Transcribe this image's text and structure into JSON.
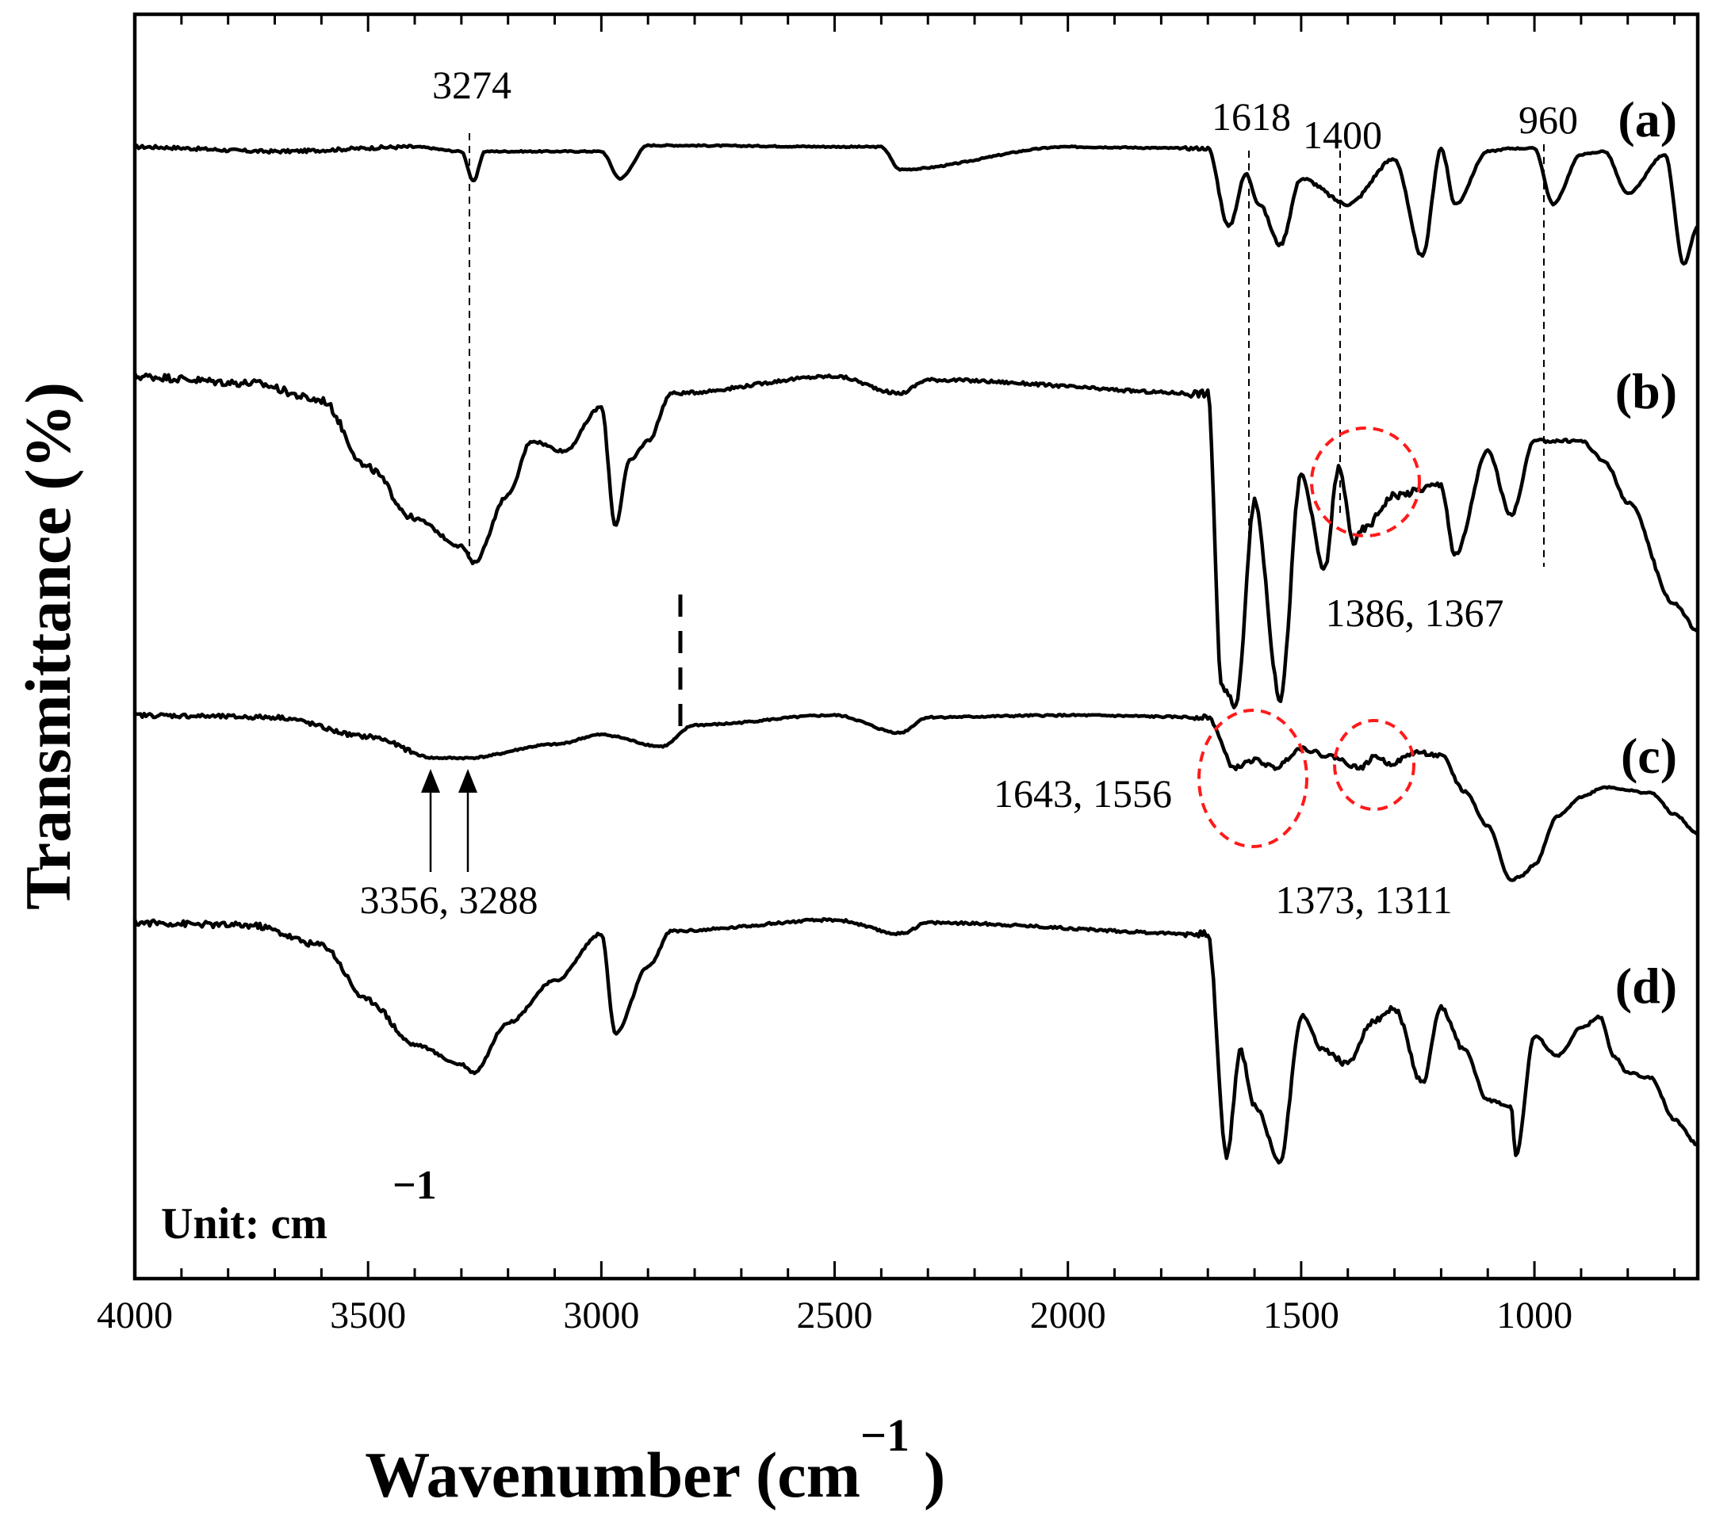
{
  "chart_data": {
    "type": "line",
    "title": "",
    "xlabel": "Wavenumber (cm",
    "xlabel_sup": "−1",
    "xlabel_close": ")",
    "ylabel": "Transmittance (%)",
    "xlim": [
      4000,
      650
    ],
    "reversed_x": true,
    "y_ticks_shown": false,
    "x_ticks": [
      4000,
      3500,
      3000,
      2500,
      2000,
      1500,
      1000
    ],
    "x_tick_labels": [
      "4000",
      "3500",
      "3000",
      "2500",
      "2000",
      "1500",
      "1000"
    ],
    "unit_note": "Unit: cm",
    "unit_note_sup": "−1",
    "series": [
      {
        "name": "(a)",
        "description_keypoints_wavenumber_cm-1": [
          4000,
          3700,
          3400,
          3300,
          3274,
          3250,
          3000,
          2960,
          2900,
          2400,
          2360,
          2000,
          1700,
          1655,
          1618,
          1590,
          1545,
          1500,
          1400,
          1300,
          1240,
          1200,
          1170,
          1100,
          1050,
          1000,
          960,
          900,
          850,
          800,
          720,
          680,
          650
        ],
        "relative_transmittance": [
          0.93,
          0.9,
          0.93,
          0.9,
          0.7,
          0.9,
          0.9,
          0.72,
          0.94,
          0.93,
          0.78,
          0.93,
          0.92,
          0.4,
          0.75,
          0.55,
          0.28,
          0.72,
          0.55,
          0.85,
          0.2,
          0.92,
          0.55,
          0.9,
          0.92,
          0.92,
          0.55,
          0.88,
          0.9,
          0.62,
          0.88,
          0.15,
          0.4
        ]
      },
      {
        "name": "(b)",
        "description_keypoints_wavenumber_cm-1": [
          4000,
          3750,
          3600,
          3500,
          3400,
          3300,
          3274,
          3200,
          3150,
          3080,
          3000,
          2970,
          2940,
          2900,
          2850,
          2500,
          2360,
          2300,
          1700,
          1670,
          1640,
          1600,
          1545,
          1500,
          1450,
          1420,
          1386,
          1367,
          1300,
          1200,
          1170,
          1100,
          1050,
          1000,
          900,
          850,
          800,
          700,
          650
        ],
        "relative_transmittance": [
          0.97,
          0.95,
          0.9,
          0.7,
          0.55,
          0.47,
          0.42,
          0.62,
          0.78,
          0.75,
          0.88,
          0.53,
          0.72,
          0.78,
          0.92,
          0.97,
          0.92,
          0.96,
          0.92,
          0.05,
          0.0,
          0.6,
          0.02,
          0.68,
          0.4,
          0.7,
          0.48,
          0.52,
          0.62,
          0.65,
          0.44,
          0.75,
          0.56,
          0.78,
          0.78,
          0.72,
          0.6,
          0.3,
          0.22
        ]
      },
      {
        "name": "(c)",
        "description_keypoints_wavenumber_cm-1": [
          4000,
          3700,
          3500,
          3356,
          3288,
          3100,
          3000,
          2870,
          2800,
          2500,
          2360,
          2300,
          2000,
          1700,
          1643,
          1600,
          1556,
          1500,
          1440,
          1373,
          1340,
          1311,
          1250,
          1200,
          1150,
          1100,
          1050,
          1030,
          1000,
          950,
          900,
          850,
          750,
          700,
          650
        ],
        "relative_transmittance": [
          0.97,
          0.96,
          0.86,
          0.75,
          0.75,
          0.82,
          0.87,
          0.81,
          0.92,
          0.97,
          0.88,
          0.96,
          0.97,
          0.96,
          0.7,
          0.74,
          0.7,
          0.8,
          0.76,
          0.7,
          0.76,
          0.72,
          0.78,
          0.76,
          0.58,
          0.4,
          0.12,
          0.14,
          0.2,
          0.45,
          0.55,
          0.6,
          0.57,
          0.46,
          0.36
        ]
      },
      {
        "name": "(d)",
        "description_keypoints_wavenumber_cm-1": [
          4000,
          3750,
          3600,
          3500,
          3400,
          3300,
          3274,
          3200,
          3100,
          3000,
          2970,
          2900,
          2850,
          2500,
          2360,
          2300,
          1700,
          1660,
          1630,
          1600,
          1545,
          1500,
          1450,
          1400,
          1350,
          1300,
          1240,
          1200,
          1150,
          1100,
          1050,
          1040,
          1000,
          950,
          900,
          860,
          830,
          800,
          750,
          700,
          650
        ],
        "relative_transmittance": [
          0.96,
          0.95,
          0.88,
          0.68,
          0.52,
          0.45,
          0.42,
          0.6,
          0.75,
          0.92,
          0.56,
          0.8,
          0.93,
          0.97,
          0.92,
          0.96,
          0.92,
          0.12,
          0.5,
          0.3,
          0.1,
          0.62,
          0.5,
          0.45,
          0.6,
          0.65,
          0.38,
          0.65,
          0.5,
          0.32,
          0.3,
          0.12,
          0.55,
          0.48,
          0.58,
          0.62,
          0.48,
          0.42,
          0.4,
          0.25,
          0.16
        ]
      }
    ],
    "series_labels": [
      "(a)",
      "(b)",
      "(c)",
      "(d)"
    ],
    "annotations": [
      {
        "label": "3274",
        "x": 3274
      },
      {
        "label": "1618",
        "x": 1618
      },
      {
        "label": "1400",
        "x": 1400
      },
      {
        "label": "960",
        "x": 960
      },
      {
        "label": "1386, 1367",
        "x": 1376
      },
      {
        "label": "1643, 1556",
        "x": 1600
      },
      {
        "label": "1373, 1311",
        "x": 1342
      },
      {
        "label": "3356, 3288",
        "x": 3322
      }
    ]
  }
}
